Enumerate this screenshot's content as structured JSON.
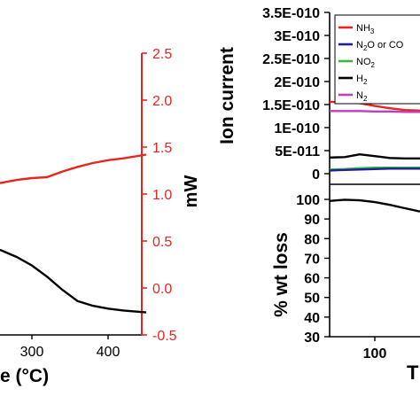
{
  "chart_data": [
    {
      "type": "line",
      "xlabel_visible": "e (°C)",
      "xticks": [
        "300",
        "400"
      ],
      "x_range": [
        240,
        450
      ],
      "y2label": "mW",
      "y2_range": [
        -0.5,
        2.5
      ],
      "y2ticks": [
        "2.5",
        "2.0",
        "1.5",
        "1.0",
        "0.5",
        "0.0",
        "-0.5"
      ],
      "y2_color": "#e8251f",
      "series": [
        {
          "axis": "right",
          "color": "#e8251f",
          "x": [
            240,
            260,
            280,
            300,
            320,
            340,
            360,
            380,
            400,
            420,
            450
          ],
          "y": [
            1.1,
            1.12,
            1.15,
            1.17,
            1.18,
            1.24,
            1.29,
            1.33,
            1.36,
            1.38,
            1.42
          ]
        },
        {
          "axis": "left",
          "color": "#000000",
          "x": [
            240,
            260,
            280,
            300,
            320,
            340,
            360,
            380,
            400,
            420,
            450
          ],
          "y_right_units": [
            0.45,
            0.4,
            0.33,
            0.24,
            0.12,
            -0.02,
            -0.14,
            -0.19,
            -0.22,
            -0.24,
            -0.26
          ]
        }
      ]
    },
    {
      "type": "line",
      "panel": "ion-current",
      "ylabel": "Ion current",
      "yticks": [
        "3.5E-010",
        "3E-010",
        "2.5E-010",
        "2E-010",
        "1.5E-010",
        "1E-010",
        "5E-011",
        "0"
      ],
      "y_range": [
        0,
        3.5e-10
      ],
      "x_range": [
        40,
        160
      ],
      "legend": [
        {
          "label_main": "NH",
          "label_sub": "3",
          "label_tail": "",
          "color": "#e8251f"
        },
        {
          "label_main": "N",
          "label_sub": "2",
          "label_tail": "O or CO",
          "color": "#1f1f9e"
        },
        {
          "label_main": "NO",
          "label_sub": "2",
          "label_tail": "",
          "color": "#3cb83c"
        },
        {
          "label_main": "H",
          "label_sub": "2",
          "label_tail": "",
          "color": "#000000"
        },
        {
          "label_main": "N",
          "label_sub": "2",
          "label_tail": "",
          "color": "#c23cc2"
        }
      ],
      "series": [
        {
          "color": "#e8251f",
          "x": [
            40,
            60,
            80,
            100,
            120,
            140,
            160
          ],
          "y": [
            1.56e-10,
            1.55e-10,
            1.53e-10,
            1.47e-10,
            1.42e-10,
            1.38e-10,
            1.37e-10
          ]
        },
        {
          "color": "#c23cc2",
          "x": [
            40,
            60,
            80,
            100,
            120,
            140,
            160
          ],
          "y": [
            1.36e-10,
            1.36e-10,
            1.36e-10,
            1.35e-10,
            1.35e-10,
            1.34e-10,
            1.34e-10
          ]
        },
        {
          "color": "#000000",
          "x": [
            40,
            60,
            80,
            100,
            120,
            140,
            160
          ],
          "y": [
            3.5e-11,
            3.6e-11,
            4.2e-11,
            3.8e-11,
            3.4e-11,
            3.3e-11,
            3.3e-11
          ]
        },
        {
          "color": "#3cb83c",
          "x": [
            40,
            60,
            80,
            100,
            120,
            140,
            160
          ],
          "y": [
            9e-12,
            1e-11,
            1.2e-11,
            1.3e-11,
            1.3e-11,
            1.3e-11,
            1.3e-11
          ]
        },
        {
          "color": "#1f1f9e",
          "x": [
            40,
            60,
            80,
            100,
            120,
            140,
            160
          ],
          "y": [
            7e-12,
            8e-12,
            9e-12,
            1e-11,
            1.1e-11,
            1.1e-11,
            1.1e-11
          ]
        }
      ]
    },
    {
      "type": "line",
      "panel": "wt-loss",
      "ylabel": "% wt loss",
      "yticks": [
        "100",
        "90",
        "80",
        "70",
        "60",
        "50",
        "40",
        "30"
      ],
      "y_range": [
        30,
        100
      ],
      "xticks": [
        "100"
      ],
      "xlabel_visible": "T",
      "x_range": [
        40,
        160
      ],
      "series": [
        {
          "color": "#000000",
          "x": [
            40,
            60,
            80,
            100,
            120,
            140,
            160
          ],
          "y": [
            99.2,
            99.8,
            99.5,
            98.6,
            97.2,
            95.5,
            93.8
          ]
        }
      ]
    }
  ]
}
